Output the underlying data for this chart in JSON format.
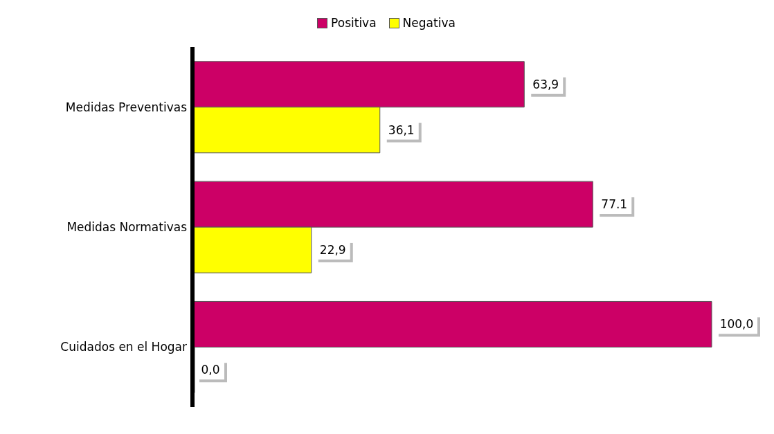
{
  "chart_data": {
    "type": "bar",
    "orientation": "horizontal",
    "categories": [
      "Medidas Preventivas",
      "Medidas Normativas",
      "Cuidados en el Hogar"
    ],
    "series": [
      {
        "name": "Positiva",
        "color": "#cc0066",
        "values": [
          63.9,
          77.1,
          100.0
        ],
        "value_labels": [
          "63,9",
          "77.1",
          "100,0"
        ]
      },
      {
        "name": "Negativa",
        "color": "#ffff00",
        "values": [
          36.1,
          22.9,
          0.0
        ],
        "value_labels": [
          "36,1",
          "22,9",
          "0,0"
        ]
      }
    ],
    "legend": "top",
    "grid": false
  }
}
